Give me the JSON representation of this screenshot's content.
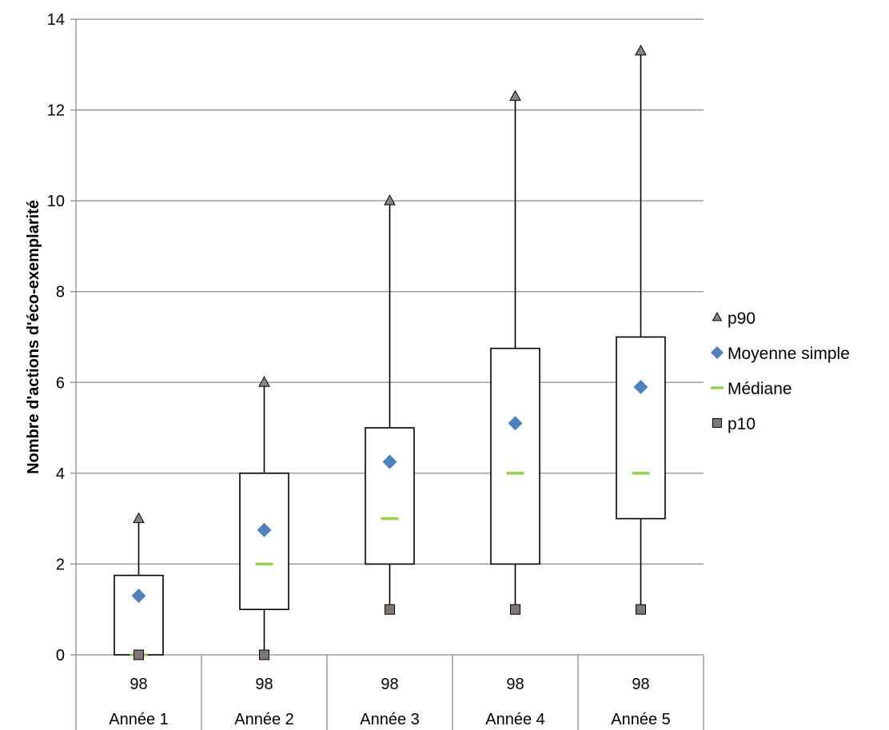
{
  "chart_data": {
    "type": "box",
    "ylabel": "Nombre d'actions d'éco-exemplarité",
    "ylim": [
      0,
      14
    ],
    "yticks": [
      0,
      2,
      4,
      6,
      8,
      10,
      12,
      14
    ],
    "grid": true,
    "legend_position": "right",
    "categories": [
      "Année 1",
      "Année 2",
      "Année 3",
      "Année 4",
      "Année 5"
    ],
    "counts": [
      "98",
      "98",
      "98",
      "98",
      "98"
    ],
    "series": [
      {
        "name": "p90",
        "values": [
          3,
          6,
          10,
          12.3,
          13.3
        ]
      },
      {
        "name": "Moyenne simple",
        "values": [
          1.3,
          2.75,
          4.25,
          5.1,
          5.9
        ]
      },
      {
        "name": "Médiane",
        "values": [
          0,
          2,
          3,
          4,
          4
        ]
      },
      {
        "name": "p10",
        "values": [
          0,
          0,
          1,
          1,
          1
        ]
      }
    ],
    "box_lower": [
      0,
      1,
      2,
      2,
      3
    ],
    "box_upper": [
      1.75,
      4,
      5,
      6.75,
      7
    ],
    "colors": {
      "p90": "#8c8680",
      "moyenne": "#4f81bd",
      "mediane": "#92d050",
      "p10": "#7f7773",
      "grid": "#8c8c8c",
      "axis": "#8c8c8c"
    }
  }
}
